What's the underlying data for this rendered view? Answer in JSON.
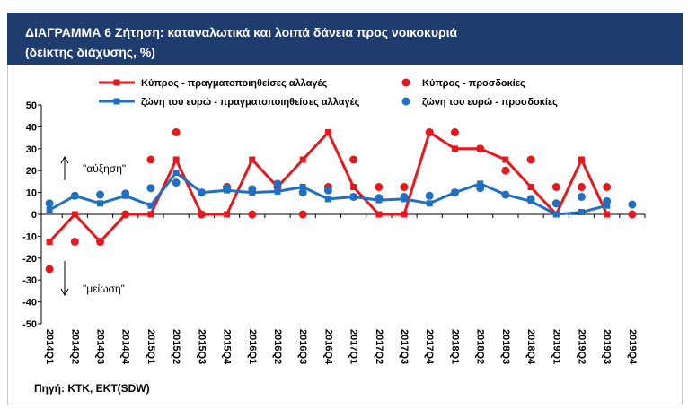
{
  "colors": {
    "title_bar": "#1f3c6e",
    "title_text": "#ffffff"
  },
  "chart_data": {
    "type": "line",
    "title": "ΔΙΑΓΡΑΜΜΑ 6 Ζήτηση: καταναλωτικά και λοιπά δάνεια προς νοικοκυριά",
    "subtitle": "(δείκτης διάχυσης, %)",
    "categories": [
      "2014Q1",
      "2014Q2",
      "2014Q3",
      "2014Q4",
      "2015Q1",
      "2015Q2",
      "2015Q3",
      "2015Q4",
      "2016Q1",
      "2016Q2",
      "2016Q3",
      "2016Q4",
      "2017Q1",
      "2017Q2",
      "2017Q3",
      "2017Q4",
      "2018Q1",
      "2018Q2",
      "2018Q3",
      "2018Q4",
      "2019Q1",
      "2019Q2",
      "2019Q3",
      "2019Q4"
    ],
    "ylim": [
      -50,
      50
    ],
    "yticks": [
      50,
      40,
      30,
      20,
      10,
      0,
      -10,
      -20,
      -30,
      -40,
      -50
    ],
    "grid": false,
    "legend": "top",
    "series": [
      {
        "name": "Κύπρος - πραγματοποιηθείσες αλλαγές",
        "type": "line",
        "color": "#e8161d",
        "values": [
          -12.5,
          0,
          -12.5,
          0,
          0,
          25,
          0,
          0,
          25,
          12.5,
          25,
          37.5,
          12.5,
          0,
          0,
          37.5,
          30,
          30,
          25,
          12.5,
          0,
          25,
          0,
          null
        ]
      },
      {
        "name": "Κύπρος - προσδοκίες",
        "type": "scatter",
        "color": "#e8161d",
        "values": [
          -25,
          -12.5,
          -12.5,
          0,
          25,
          37.5,
          0,
          12.5,
          0,
          12.5,
          0,
          12.5,
          25,
          12.5,
          12.5,
          37.5,
          37.5,
          30,
          20,
          25,
          12.5,
          12.5,
          12.5,
          0
        ]
      },
      {
        "name": "ζώνη του ευρώ - πραγματοποιηθείσες αλλαγές",
        "type": "line",
        "color": "#1f6fc2",
        "values": [
          2,
          8.5,
          5,
          8.5,
          4,
          19,
          10,
          11,
          10,
          10.5,
          12.5,
          7,
          8,
          6.5,
          7,
          5,
          10,
          14,
          9,
          6,
          0,
          1,
          4,
          null
        ]
      },
      {
        "name": "ζώνη του ευρώ - προσδοκίες",
        "type": "scatter",
        "color": "#1f6fc2",
        "values": [
          5,
          8.5,
          9,
          9.5,
          12,
          14.5,
          10,
          12,
          11.5,
          14,
          10,
          11,
          8,
          7.5,
          8,
          8.5,
          10,
          12,
          9,
          7,
          5,
          8,
          6,
          4.5
        ]
      }
    ],
    "annotations": [
      "\"αύξηση\"",
      "\"μείωση\""
    ]
  },
  "source": "Πηγή: ΚΤΚ, ΕΚΤ(SDW)"
}
